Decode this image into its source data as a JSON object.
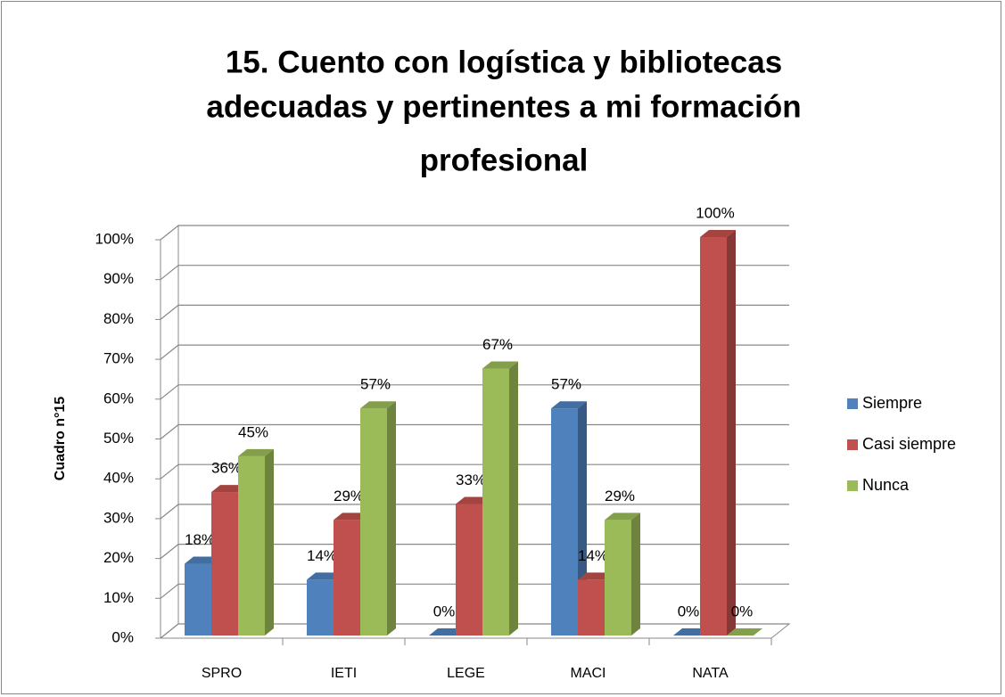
{
  "chart_data": {
    "type": "bar3d",
    "title": [
      "15. Cuento con logística y bibliotecas",
      "adecuadas y pertinentes a mi formación",
      "profesional"
    ],
    "y_label": "Cuadro n°15",
    "categories": [
      "SPRO",
      "IETI",
      "LEGE",
      "MACI",
      "NATA"
    ],
    "series": [
      {
        "name": "Siempre",
        "color": "#4f81bd",
        "values": [
          18,
          14,
          0,
          57,
          0
        ],
        "value_labels": [
          "18%",
          "14%",
          "0%",
          "57%",
          "0%"
        ]
      },
      {
        "name": "Casi siempre",
        "color": "#c0504d",
        "values": [
          36,
          29,
          33,
          14,
          100
        ],
        "value_labels": [
          "36%",
          "29%",
          "33%",
          "14%",
          "100%"
        ]
      },
      {
        "name": "Nunca",
        "color": "#9bbb59",
        "values": [
          45,
          57,
          67,
          29,
          0
        ],
        "value_labels": [
          "45%",
          "57%",
          "67%",
          "29%",
          "0%"
        ]
      }
    ],
    "ylim": [
      0,
      100
    ],
    "yticks": [
      {
        "value": 0,
        "label": "0%"
      },
      {
        "value": 10,
        "label": "10%"
      },
      {
        "value": 20,
        "label": "20%"
      },
      {
        "value": 30,
        "label": "30%"
      },
      {
        "value": 40,
        "label": "40%"
      },
      {
        "value": 50,
        "label": "50%"
      },
      {
        "value": 60,
        "label": "60%"
      },
      {
        "value": 70,
        "label": "70%"
      },
      {
        "value": 80,
        "label": "80%"
      },
      {
        "value": 90,
        "label": "90%"
      },
      {
        "value": 100,
        "label": "100%"
      }
    ],
    "grid": true,
    "legend": "right"
  }
}
